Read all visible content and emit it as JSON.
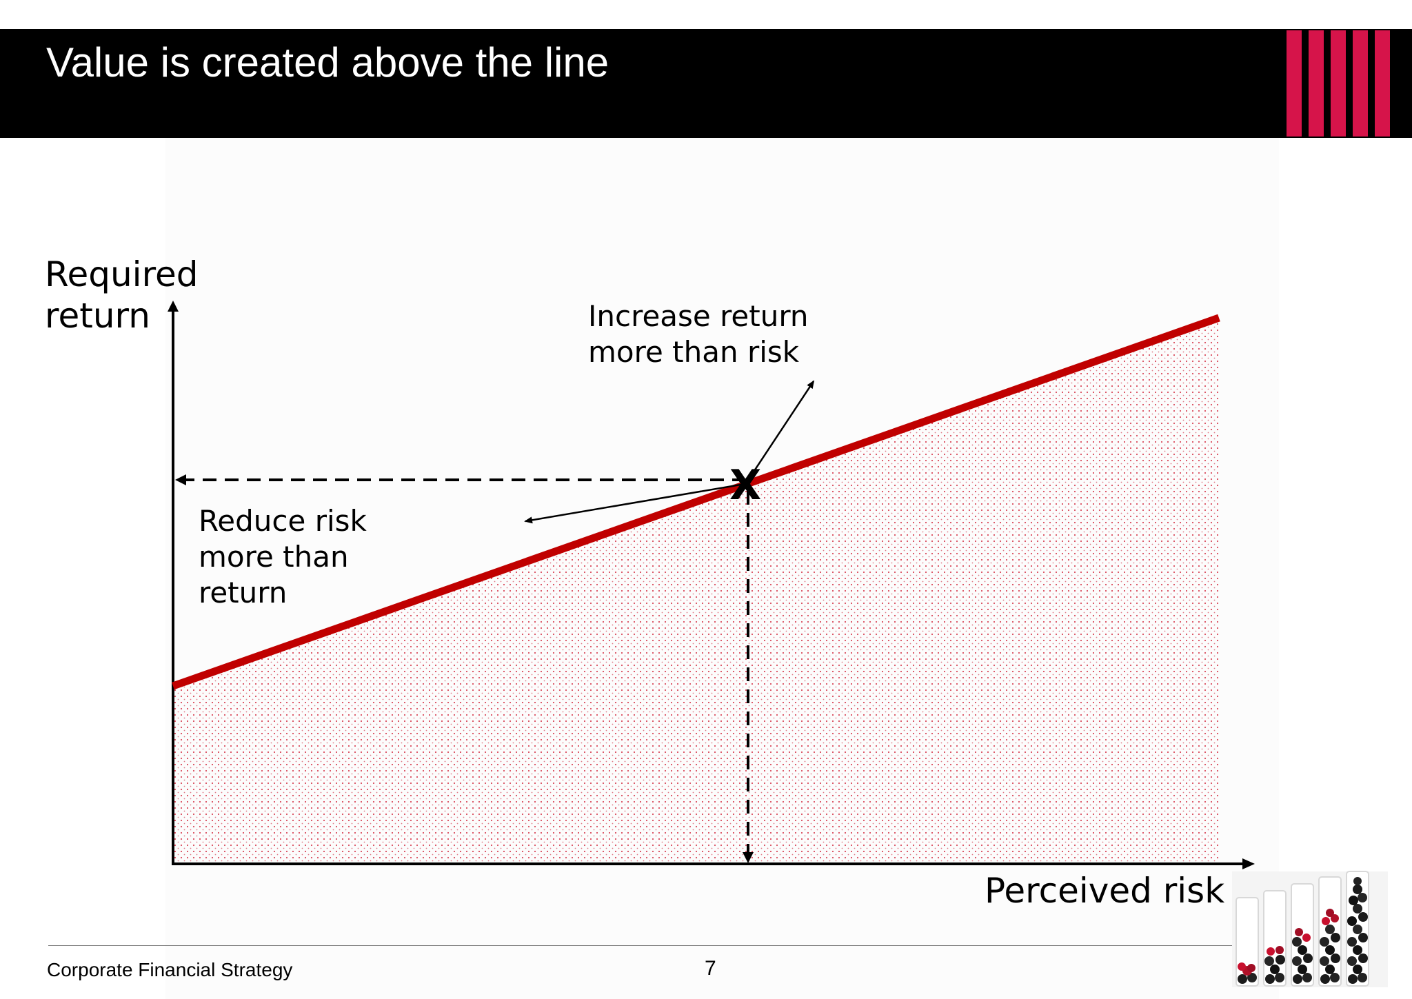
{
  "slide": {
    "title": "Value is created above the line"
  },
  "diagram": {
    "y_axis_label": "Required\nreturn",
    "x_axis_label": "Perceived risk",
    "point_marker": "X",
    "annotations": {
      "increase": "Increase return\nmore than risk",
      "reduce": "Reduce risk\nmore than\nreturn"
    },
    "colors": {
      "line": "#c00000",
      "region_dots": "#d9485a",
      "axes": "#000000"
    }
  },
  "footer": {
    "left_text": "Corporate Financial Strategy",
    "page_number": "7"
  },
  "theme": {
    "header_background": "#000000",
    "header_text": "#ffffff",
    "accent": "#d6144a"
  },
  "icons": {
    "brand": "red-vertical-bars-logo",
    "decor": "stacked-berries-tubes-image"
  }
}
